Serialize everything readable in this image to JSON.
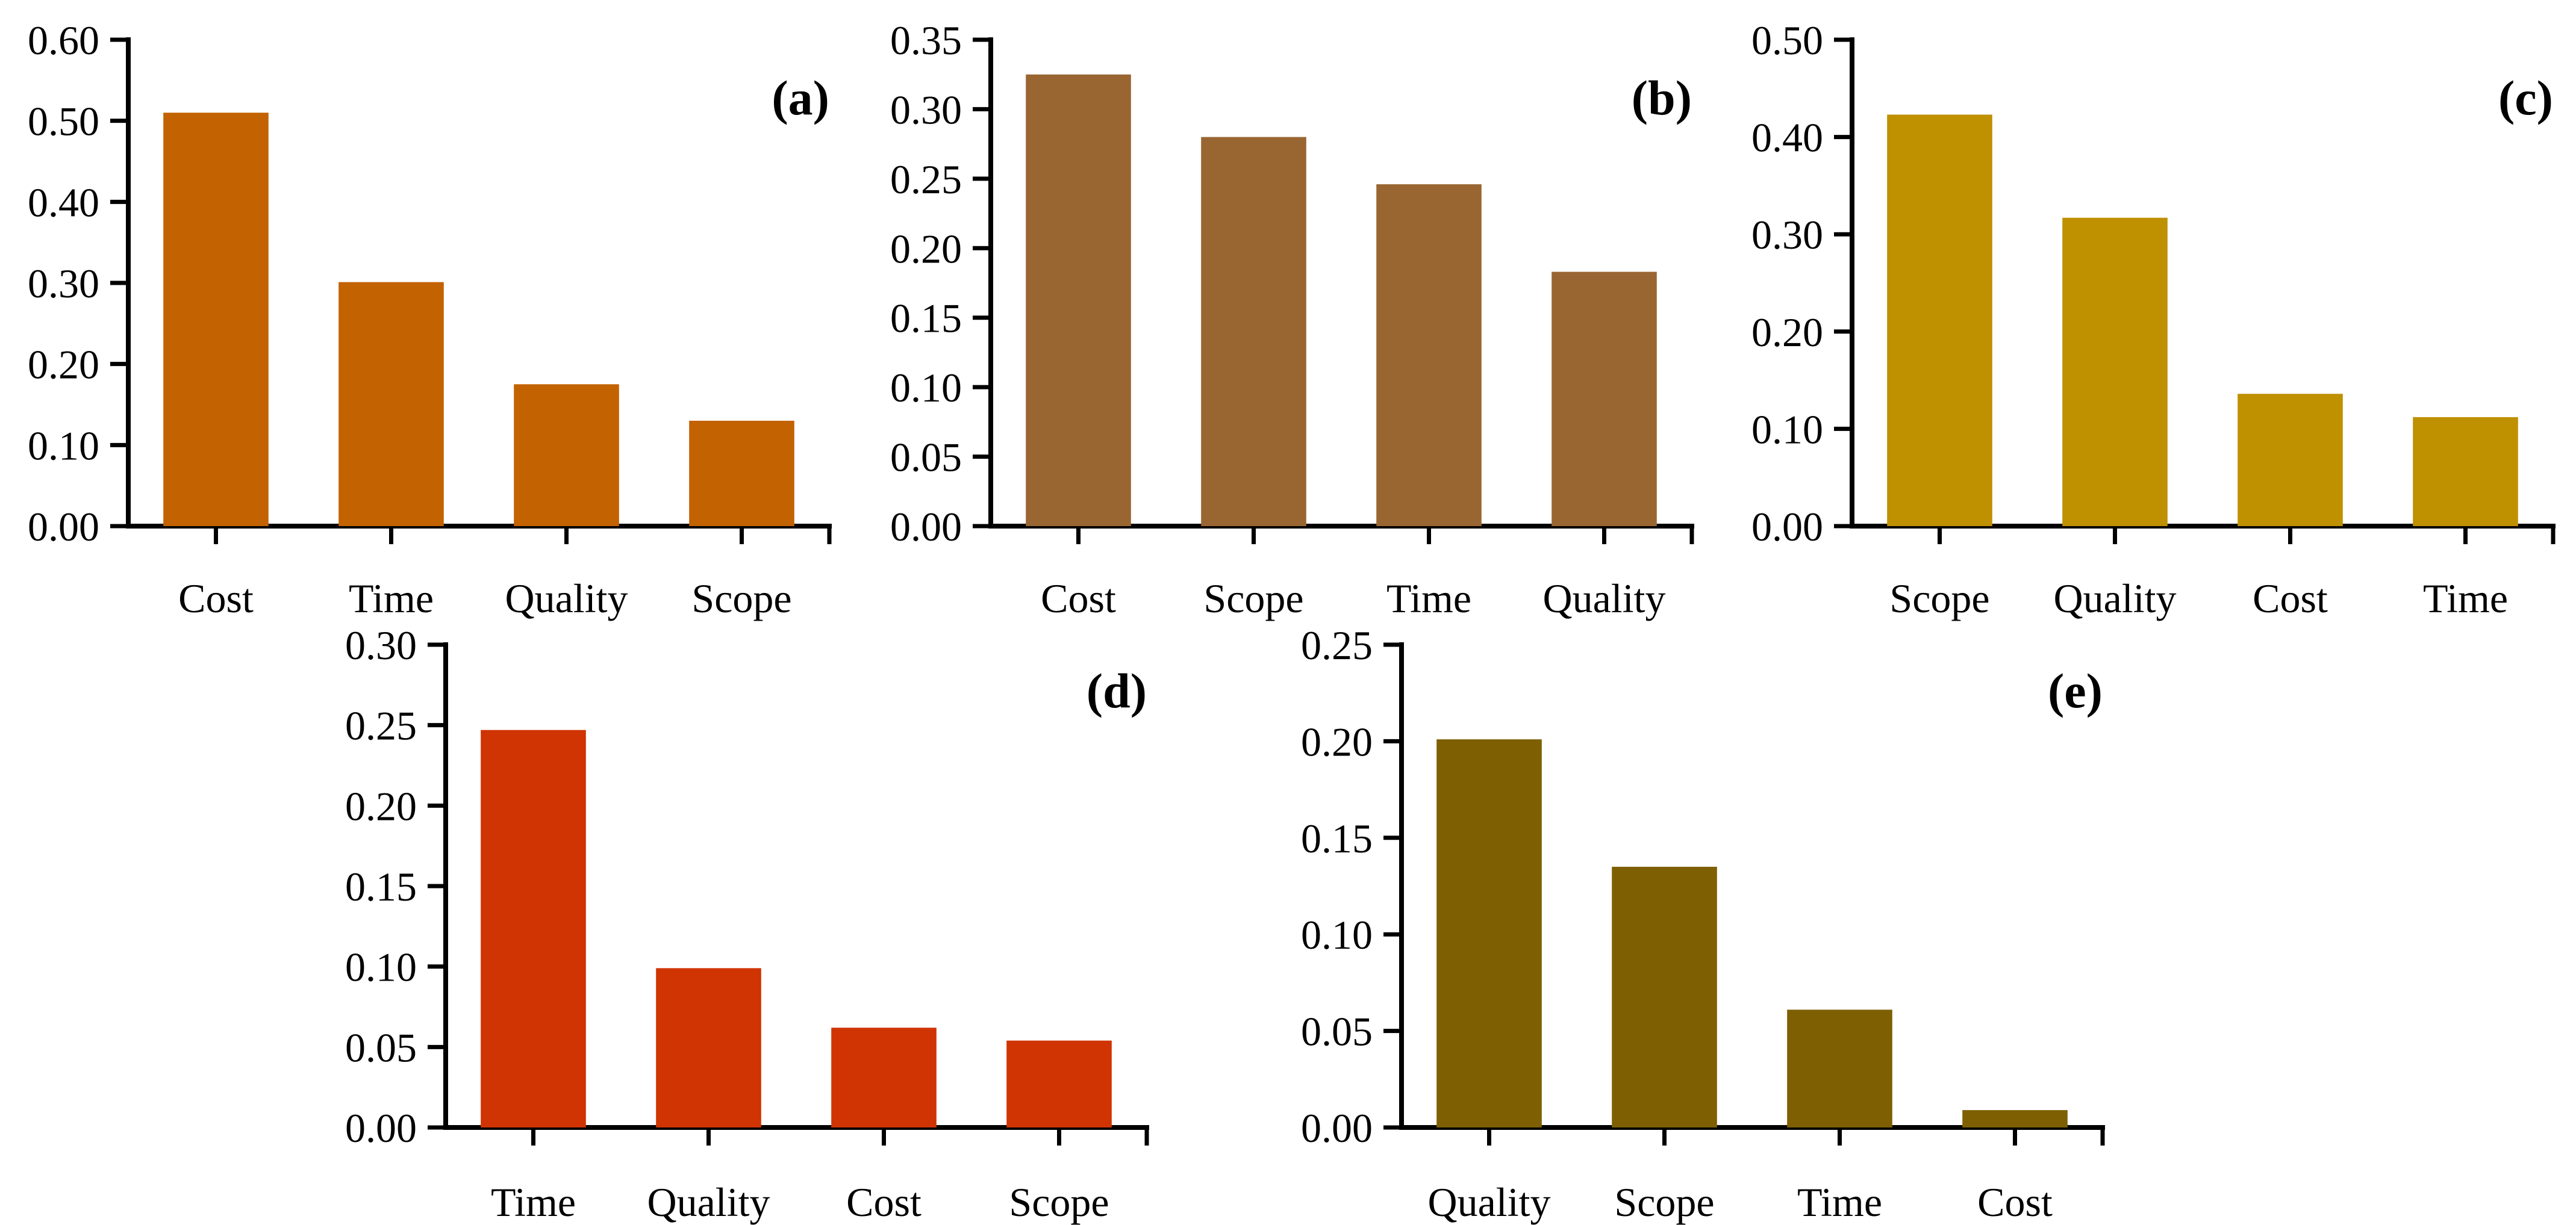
{
  "figure": {
    "background_color": "#FFFFFF",
    "text_color": "#000000",
    "panel_count": 5
  },
  "chart_data": [
    {
      "type": "bar",
      "panel_label": "(a)",
      "categories": [
        "Cost",
        "Time",
        "Quality",
        "Scope"
      ],
      "values": [
        0.51,
        0.301,
        0.175,
        0.13
      ],
      "bar_color": "#C26200",
      "ylim": [
        0,
        0.6
      ],
      "ytick_step": 0.1,
      "ytick_labels": [
        "0.00",
        "0.10",
        "0.20",
        "0.30",
        "0.40",
        "0.50",
        "0.60"
      ],
      "title": "",
      "xlabel": "",
      "ylabel": "",
      "grid": false,
      "legend": null
    },
    {
      "type": "bar",
      "panel_label": "(b)",
      "categories": [
        "Cost",
        "Scope",
        "Time",
        "Quality"
      ],
      "values": [
        0.325,
        0.28,
        0.246,
        0.183
      ],
      "bar_color": "#996632",
      "ylim": [
        0,
        0.35
      ],
      "ytick_step": 0.05,
      "ytick_labels": [
        "0.00",
        "0.05",
        "0.10",
        "0.15",
        "0.20",
        "0.25",
        "0.30",
        "0.35"
      ],
      "title": "",
      "xlabel": "",
      "ylabel": "",
      "grid": false,
      "legend": null
    },
    {
      "type": "bar",
      "panel_label": "(c)",
      "categories": [
        "Scope",
        "Quality",
        "Cost",
        "Time"
      ],
      "values": [
        0.423,
        0.317,
        0.136,
        0.112
      ],
      "bar_color": "#BF9000",
      "ylim": [
        0,
        0.5
      ],
      "ytick_step": 0.1,
      "ytick_labels": [
        "0.00",
        "0.10",
        "0.20",
        "0.30",
        "0.40",
        "0.50"
      ],
      "title": "",
      "xlabel": "",
      "ylabel": "",
      "grid": false,
      "legend": null
    },
    {
      "type": "bar",
      "panel_label": "(d)",
      "categories": [
        "Time",
        "Quality",
        "Cost",
        "Scope"
      ],
      "values": [
        0.247,
        0.099,
        0.062,
        0.054
      ],
      "bar_color": "#CF3402",
      "ylim": [
        0,
        0.3
      ],
      "ytick_step": 0.05,
      "ytick_labels": [
        "0.00",
        "0.05",
        "0.10",
        "0.15",
        "0.20",
        "0.25",
        "0.30"
      ],
      "title": "",
      "xlabel": "",
      "ylabel": "",
      "grid": false,
      "legend": null
    },
    {
      "type": "bar",
      "panel_label": "(e)",
      "categories": [
        "Quality",
        "Scope",
        "Time",
        "Cost"
      ],
      "values": [
        0.201,
        0.135,
        0.061,
        0.009
      ],
      "bar_color": "#7E5F02",
      "ylim": [
        0,
        0.25
      ],
      "ytick_step": 0.05,
      "ytick_labels": [
        "0.00",
        "0.05",
        "0.10",
        "0.15",
        "0.20",
        "0.25"
      ],
      "title": "",
      "xlabel": "",
      "ylabel": "",
      "grid": false,
      "legend": null
    }
  ]
}
